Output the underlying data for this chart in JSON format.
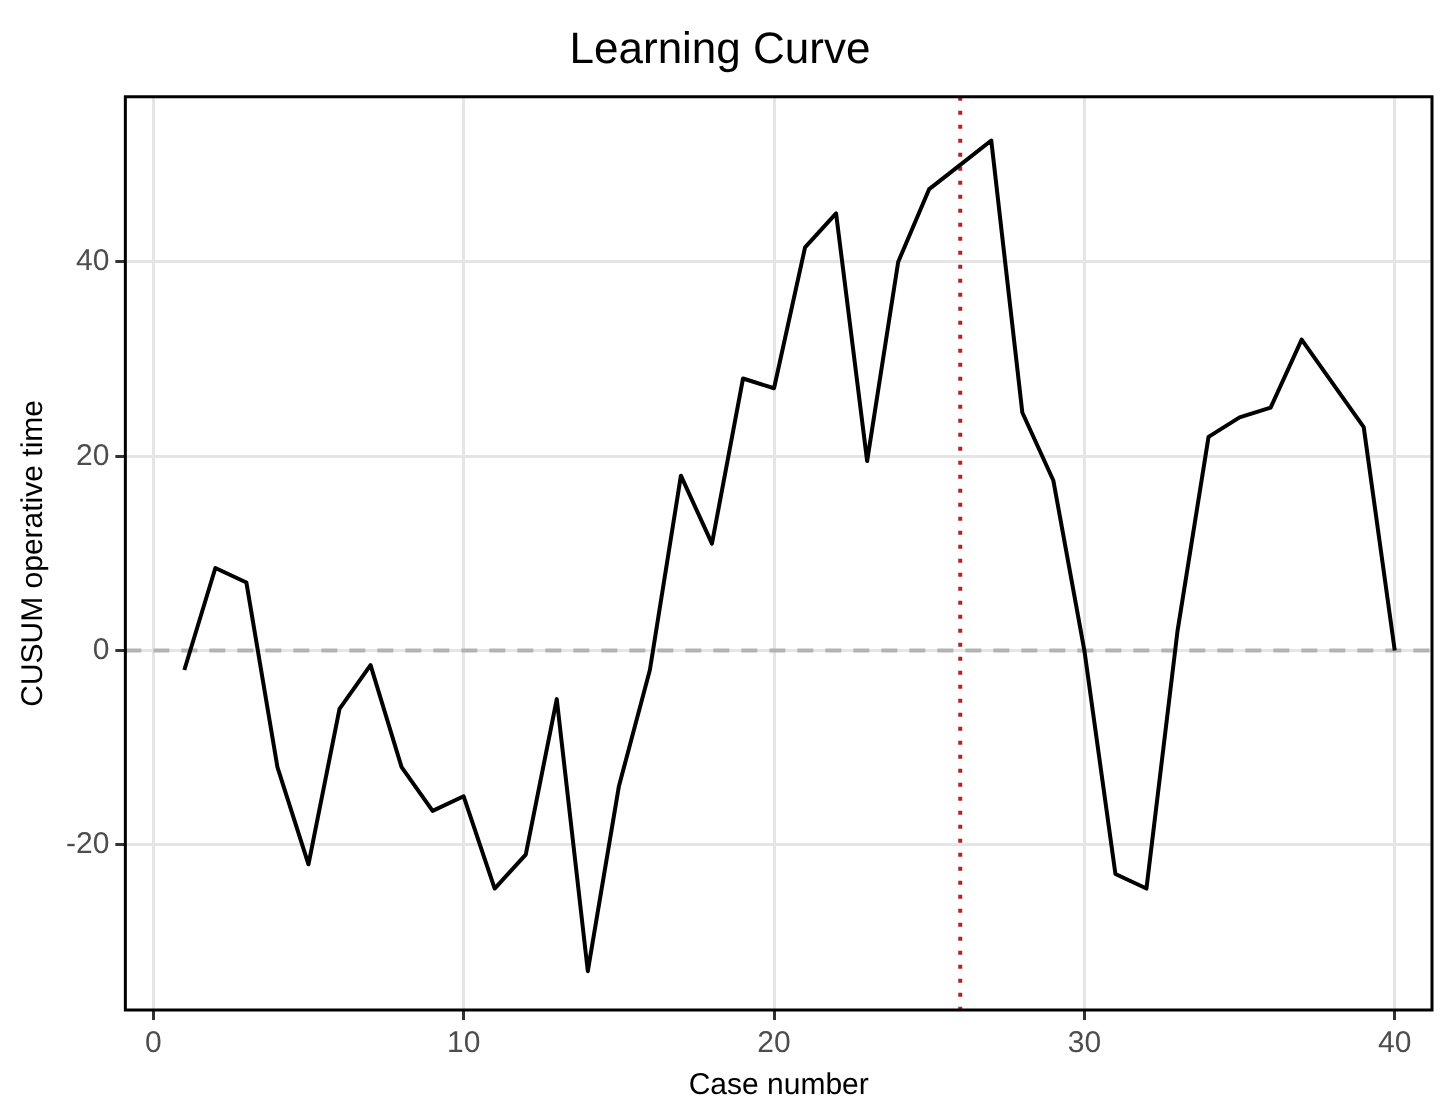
{
  "chart_data": {
    "type": "line",
    "title": "Learning Curve",
    "xlabel": "Case number",
    "ylabel": "CUSUM operative time",
    "x": [
      1,
      2,
      3,
      4,
      5,
      6,
      7,
      8,
      9,
      10,
      11,
      12,
      13,
      14,
      15,
      16,
      17,
      18,
      19,
      20,
      21,
      22,
      23,
      24,
      25,
      26,
      27,
      28,
      29,
      30,
      31,
      32,
      33,
      34,
      35,
      36,
      37,
      38,
      39,
      40
    ],
    "series": [
      {
        "color": "#000000",
        "values": [
          -2,
          8.5,
          7,
          -12,
          -22,
          -6,
          -1.5,
          -12,
          -16.5,
          -15,
          -24.5,
          -21,
          -5,
          -33,
          -14,
          -2,
          18,
          11,
          28,
          27,
          41.5,
          45,
          19.5,
          40,
          47.5,
          50,
          52.5,
          24.5,
          17.5,
          0,
          -23,
          -24.5,
          2,
          22,
          24,
          25,
          32,
          27.5,
          23,
          0
        ]
      }
    ],
    "xlim": [
      -0.9,
      41.2
    ],
    "xticks": [
      0,
      10,
      20,
      30,
      40
    ],
    "ylim": [
      -37,
      57
    ],
    "yticks": [
      -20,
      0,
      20,
      40
    ],
    "ref_lines": [
      {
        "axis": "y",
        "value": 0,
        "color": "#b3b3b3",
        "line_style": "dashed"
      },
      {
        "axis": "x",
        "value": 26,
        "color": "#b22222",
        "line_style": "dotted"
      }
    ],
    "grid": true,
    "legend": false,
    "marker": "none",
    "line_style": "solid"
  }
}
